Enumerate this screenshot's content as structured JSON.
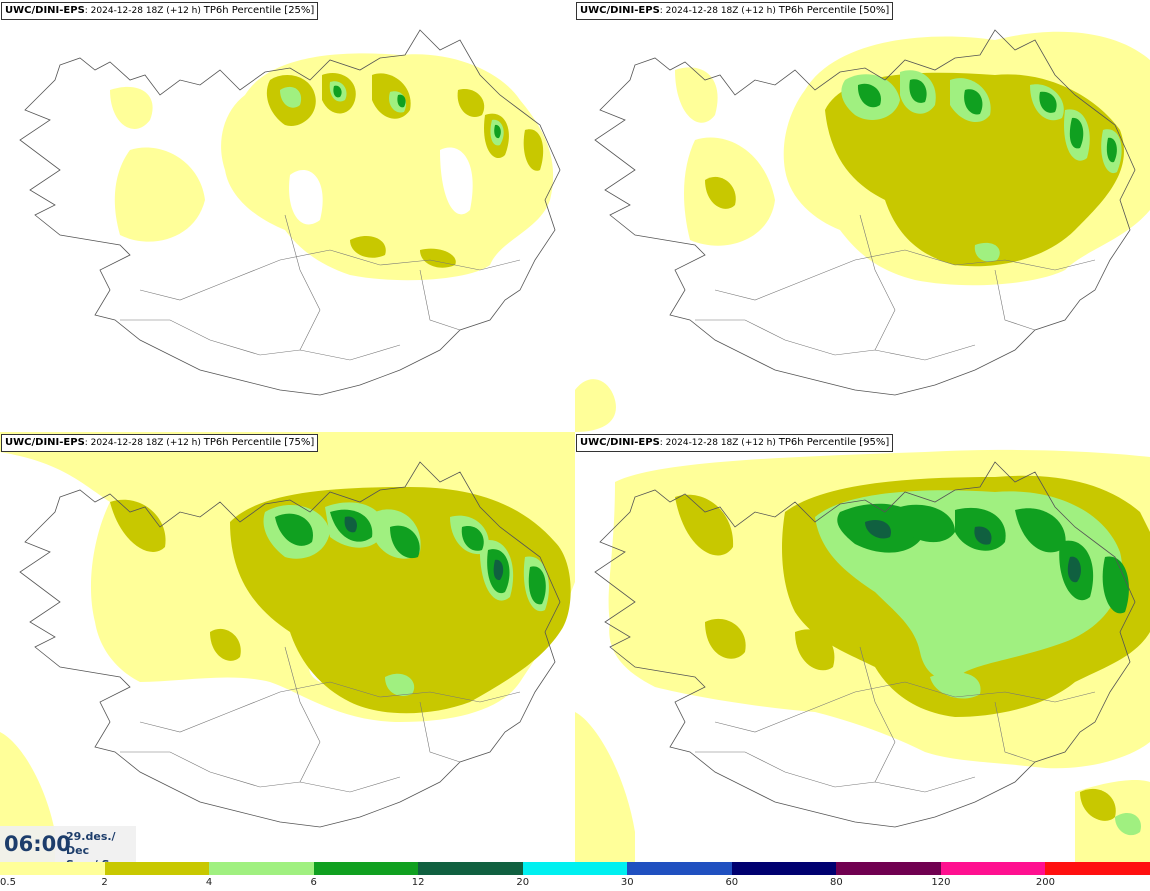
{
  "panels": [
    {
      "model": "UWC/DINI-EPS",
      "run": ": 2024-12-28 18Z (+12 h)",
      "field": "TP6h Percentile [25%]"
    },
    {
      "model": "UWC/DINI-EPS",
      "run": ": 2024-12-28 18Z (+12 h)",
      "field": "TP6h Percentile [50%]"
    },
    {
      "model": "UWC/DINI-EPS",
      "run": ": 2024-12-28 18Z (+12 h)",
      "field": "TP6h Percentile [75%]"
    },
    {
      "model": "UWC/DINI-EPS",
      "run": ": 2024-12-28 18Z (+12 h)",
      "field": "TP6h Percentile [95%]"
    }
  ],
  "valid_time": {
    "time": "06:00",
    "date": "29.des./ Dec",
    "day": "Sun./ Sun"
  },
  "legend": {
    "labels": [
      "0.5",
      "2",
      "4",
      "6",
      "12",
      "20",
      "30",
      "60",
      "80",
      "120",
      "200"
    ],
    "colors": [
      "#ffff99",
      "#c8c800",
      "#a0f080",
      "#10a020",
      "#106040",
      "#00f0f0",
      "#2050c0",
      "#000070",
      "#700050",
      "#ff1090",
      "#ff1010"
    ]
  }
}
